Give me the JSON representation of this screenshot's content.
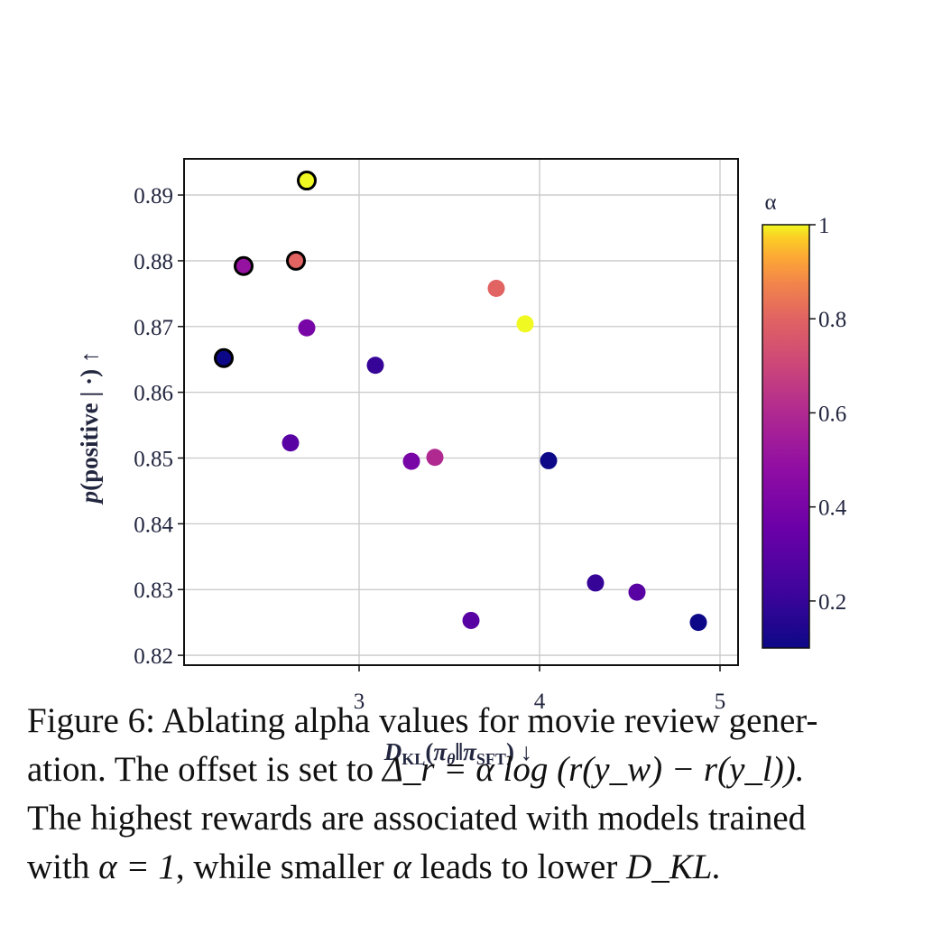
{
  "chart_data": {
    "type": "scatter",
    "xlabel": "D_KL(π_θ‖π_SFT) ↓",
    "ylabel": "p(positive | ·) ↑",
    "xlim": [
      2.03,
      5.1
    ],
    "ylim": [
      0.8185,
      0.8955
    ],
    "x_ticks": [
      "3",
      "4",
      "5"
    ],
    "y_ticks": [
      "0.82",
      "0.83",
      "0.84",
      "0.85",
      "0.86",
      "0.87",
      "0.88",
      "0.89"
    ],
    "grid": true,
    "colorbar": {
      "title": "α",
      "range": [
        0.1,
        1.0
      ],
      "ticks": [
        "0.2",
        "0.4",
        "0.6",
        "0.8",
        "1"
      ],
      "colormap": "plasma"
    },
    "points": [
      {
        "x": 2.71,
        "y": 0.8922,
        "alpha": 1.0,
        "highlighted": true
      },
      {
        "x": 2.36,
        "y": 0.8792,
        "alpha": 0.5,
        "highlighted": true
      },
      {
        "x": 2.65,
        "y": 0.88,
        "alpha": 0.8,
        "highlighted": true
      },
      {
        "x": 2.25,
        "y": 0.8652,
        "alpha": 0.1,
        "highlighted": true
      },
      {
        "x": 2.71,
        "y": 0.8698,
        "alpha": 0.4,
        "highlighted": false
      },
      {
        "x": 3.09,
        "y": 0.8641,
        "alpha": 0.2,
        "highlighted": false
      },
      {
        "x": 3.76,
        "y": 0.8758,
        "alpha": 0.8,
        "highlighted": false
      },
      {
        "x": 3.92,
        "y": 0.8704,
        "alpha": 1.0,
        "highlighted": false
      },
      {
        "x": 2.62,
        "y": 0.8523,
        "alpha": 0.3,
        "highlighted": false
      },
      {
        "x": 3.29,
        "y": 0.8495,
        "alpha": 0.4,
        "highlighted": false
      },
      {
        "x": 3.42,
        "y": 0.8501,
        "alpha": 0.6,
        "highlighted": false
      },
      {
        "x": 4.05,
        "y": 0.8496,
        "alpha": 0.1,
        "highlighted": false
      },
      {
        "x": 4.31,
        "y": 0.831,
        "alpha": 0.2,
        "highlighted": false
      },
      {
        "x": 4.54,
        "y": 0.8296,
        "alpha": 0.3,
        "highlighted": false
      },
      {
        "x": 3.62,
        "y": 0.8253,
        "alpha": 0.3,
        "highlighted": false
      },
      {
        "x": 4.88,
        "y": 0.825,
        "alpha": 0.1,
        "highlighted": false
      }
    ]
  },
  "axis_text": {
    "y_p": "p",
    "y_rest": "(positive | ·) ↑",
    "x_d": "D",
    "x_kl": "KL",
    "x_open": "(",
    "x_pi1": "π",
    "x_theta": "θ",
    "x_mid": "‖",
    "x_pi2": "π",
    "x_sft": "SFT",
    "x_close": ") ↓"
  },
  "caption": {
    "line1": "Figure 6: Ablating alpha values for movie review gener-",
    "line2_text": "ation. The offset is set to ",
    "line2_math": "Δ_r = α log (r(y_w) − r(y_l)).",
    "line3": "The highest rewards are associated with models trained",
    "line4_a": "with ",
    "line4_alpha1": "α = 1",
    "line4_b": ", while smaller ",
    "line4_alpha2": "α",
    "line4_c": " leads to lower ",
    "line4_dkl": "D_KL."
  }
}
